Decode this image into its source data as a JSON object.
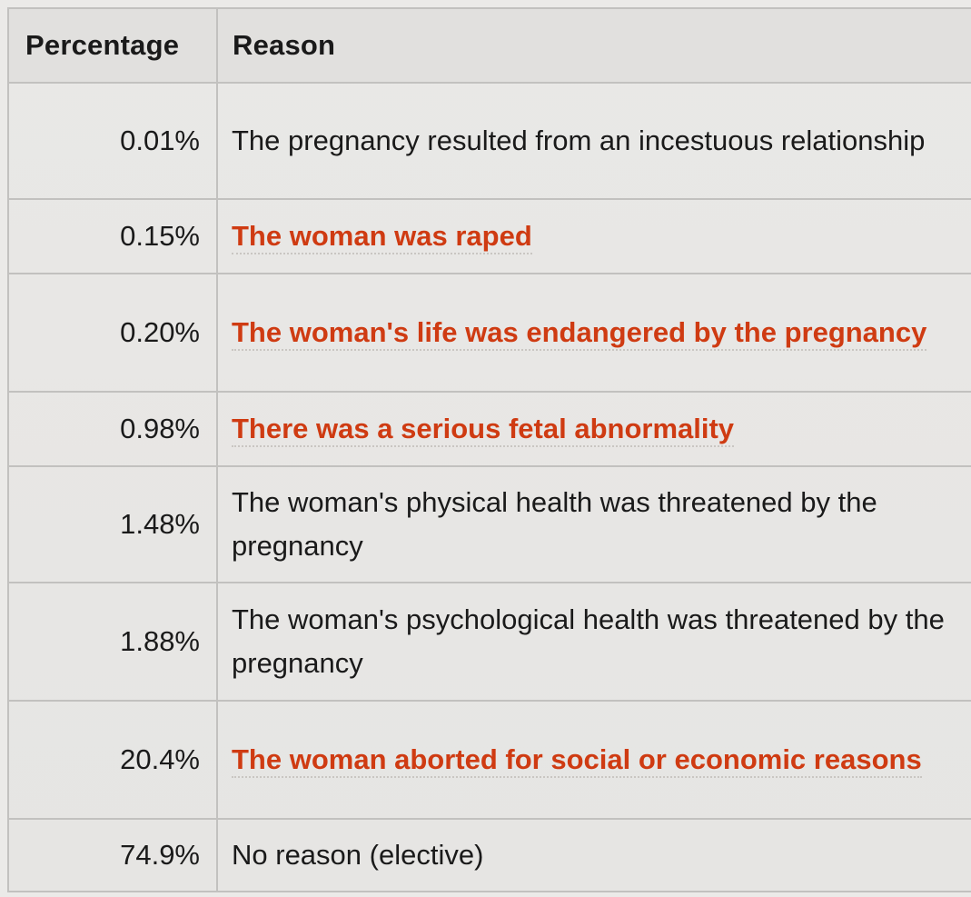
{
  "table": {
    "headers": {
      "percentage": "Percentage",
      "reason": "Reason"
    },
    "rows": [
      {
        "percentage": "0.01%",
        "reason": "The pregnancy resulted from an incestuous relationship",
        "linked": false
      },
      {
        "percentage": "0.15%",
        "reason": "The woman was raped",
        "linked": true
      },
      {
        "percentage": "0.20%",
        "reason": "The woman's life was endangered by the pregnancy",
        "linked": true
      },
      {
        "percentage": "0.98%",
        "reason": "There was a serious fetal abnormality",
        "linked": true
      },
      {
        "percentage": "1.48%",
        "reason": "The woman's physical health was threatened by the pregnancy",
        "linked": false
      },
      {
        "percentage": "1.88%",
        "reason": "The woman's psychological health was threatened by the pregnancy",
        "linked": false
      },
      {
        "percentage": "20.4%",
        "reason": "The woman aborted for social or economic reasons",
        "linked": true
      },
      {
        "percentage": "74.9%",
        "reason": "No reason (elective)",
        "linked": false
      }
    ]
  },
  "colors": {
    "link_text": "#cf3b12",
    "body_text": "#1a1a1a",
    "border": "#c2c1bf",
    "background": "#e9e8e6"
  }
}
